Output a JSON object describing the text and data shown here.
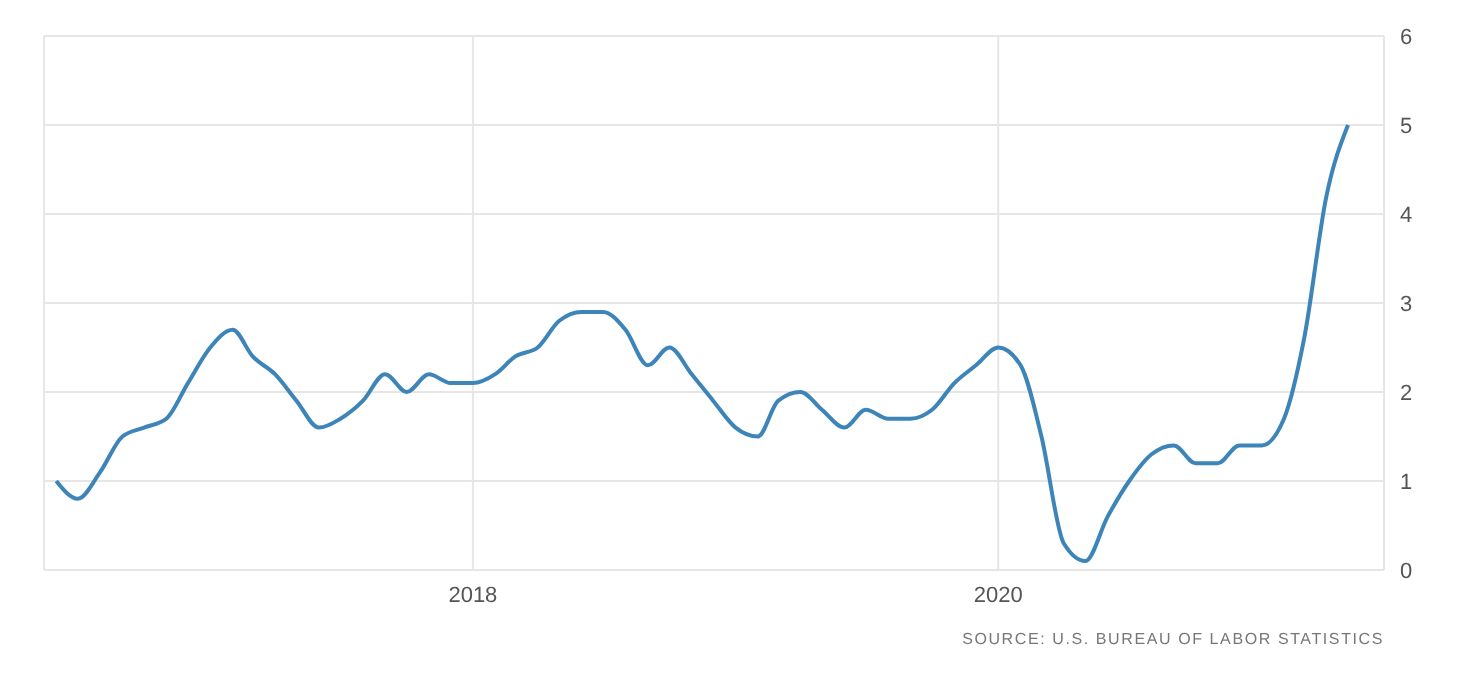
{
  "chart_data": {
    "type": "line",
    "x": [
      "2016-06",
      "2016-07",
      "2016-08",
      "2016-09",
      "2016-10",
      "2016-11",
      "2016-12",
      "2017-01",
      "2017-02",
      "2017-03",
      "2017-04",
      "2017-05",
      "2017-06",
      "2017-07",
      "2017-08",
      "2017-09",
      "2017-10",
      "2017-11",
      "2017-12",
      "2018-01",
      "2018-02",
      "2018-03",
      "2018-04",
      "2018-05",
      "2018-06",
      "2018-07",
      "2018-08",
      "2018-09",
      "2018-10",
      "2018-11",
      "2018-12",
      "2019-01",
      "2019-02",
      "2019-03",
      "2019-04",
      "2019-05",
      "2019-06",
      "2019-07",
      "2019-08",
      "2019-09",
      "2019-10",
      "2019-11",
      "2019-12",
      "2020-01",
      "2020-02",
      "2020-03",
      "2020-04",
      "2020-05",
      "2020-06",
      "2020-07",
      "2020-08",
      "2020-09",
      "2020-10",
      "2020-11",
      "2020-12",
      "2021-01",
      "2021-02",
      "2021-03",
      "2021-04",
      "2021-05"
    ],
    "series": [
      {
        "color": "#3d85b8",
        "values": [
          1.0,
          0.8,
          1.1,
          1.5,
          1.6,
          1.7,
          2.1,
          2.5,
          2.7,
          2.4,
          2.2,
          1.9,
          1.6,
          1.7,
          1.9,
          2.2,
          2.0,
          2.2,
          2.1,
          2.1,
          2.2,
          2.4,
          2.5,
          2.8,
          2.9,
          2.9,
          2.7,
          2.3,
          2.5,
          2.2,
          1.9,
          1.6,
          1.5,
          1.9,
          2.0,
          1.8,
          1.6,
          1.8,
          1.7,
          1.7,
          1.8,
          2.1,
          2.3,
          2.5,
          2.3,
          1.5,
          0.3,
          0.1,
          0.6,
          1.0,
          1.3,
          1.4,
          1.2,
          1.2,
          1.4,
          1.4,
          1.7,
          2.6,
          4.2,
          5.0
        ]
      }
    ],
    "xlim": [
      "2016-05-15",
      "2021-06-20"
    ],
    "xticks": [
      "2018",
      "2020"
    ],
    "ylim": [
      0,
      6
    ],
    "yticks": [
      0,
      1,
      2,
      3,
      4,
      5,
      6
    ],
    "grid": true,
    "legend": false,
    "marker": "none",
    "line_style": "solid",
    "annotations": [
      "SOURCE: U.S. BUREAU OF LABOR STATISTICS"
    ]
  }
}
